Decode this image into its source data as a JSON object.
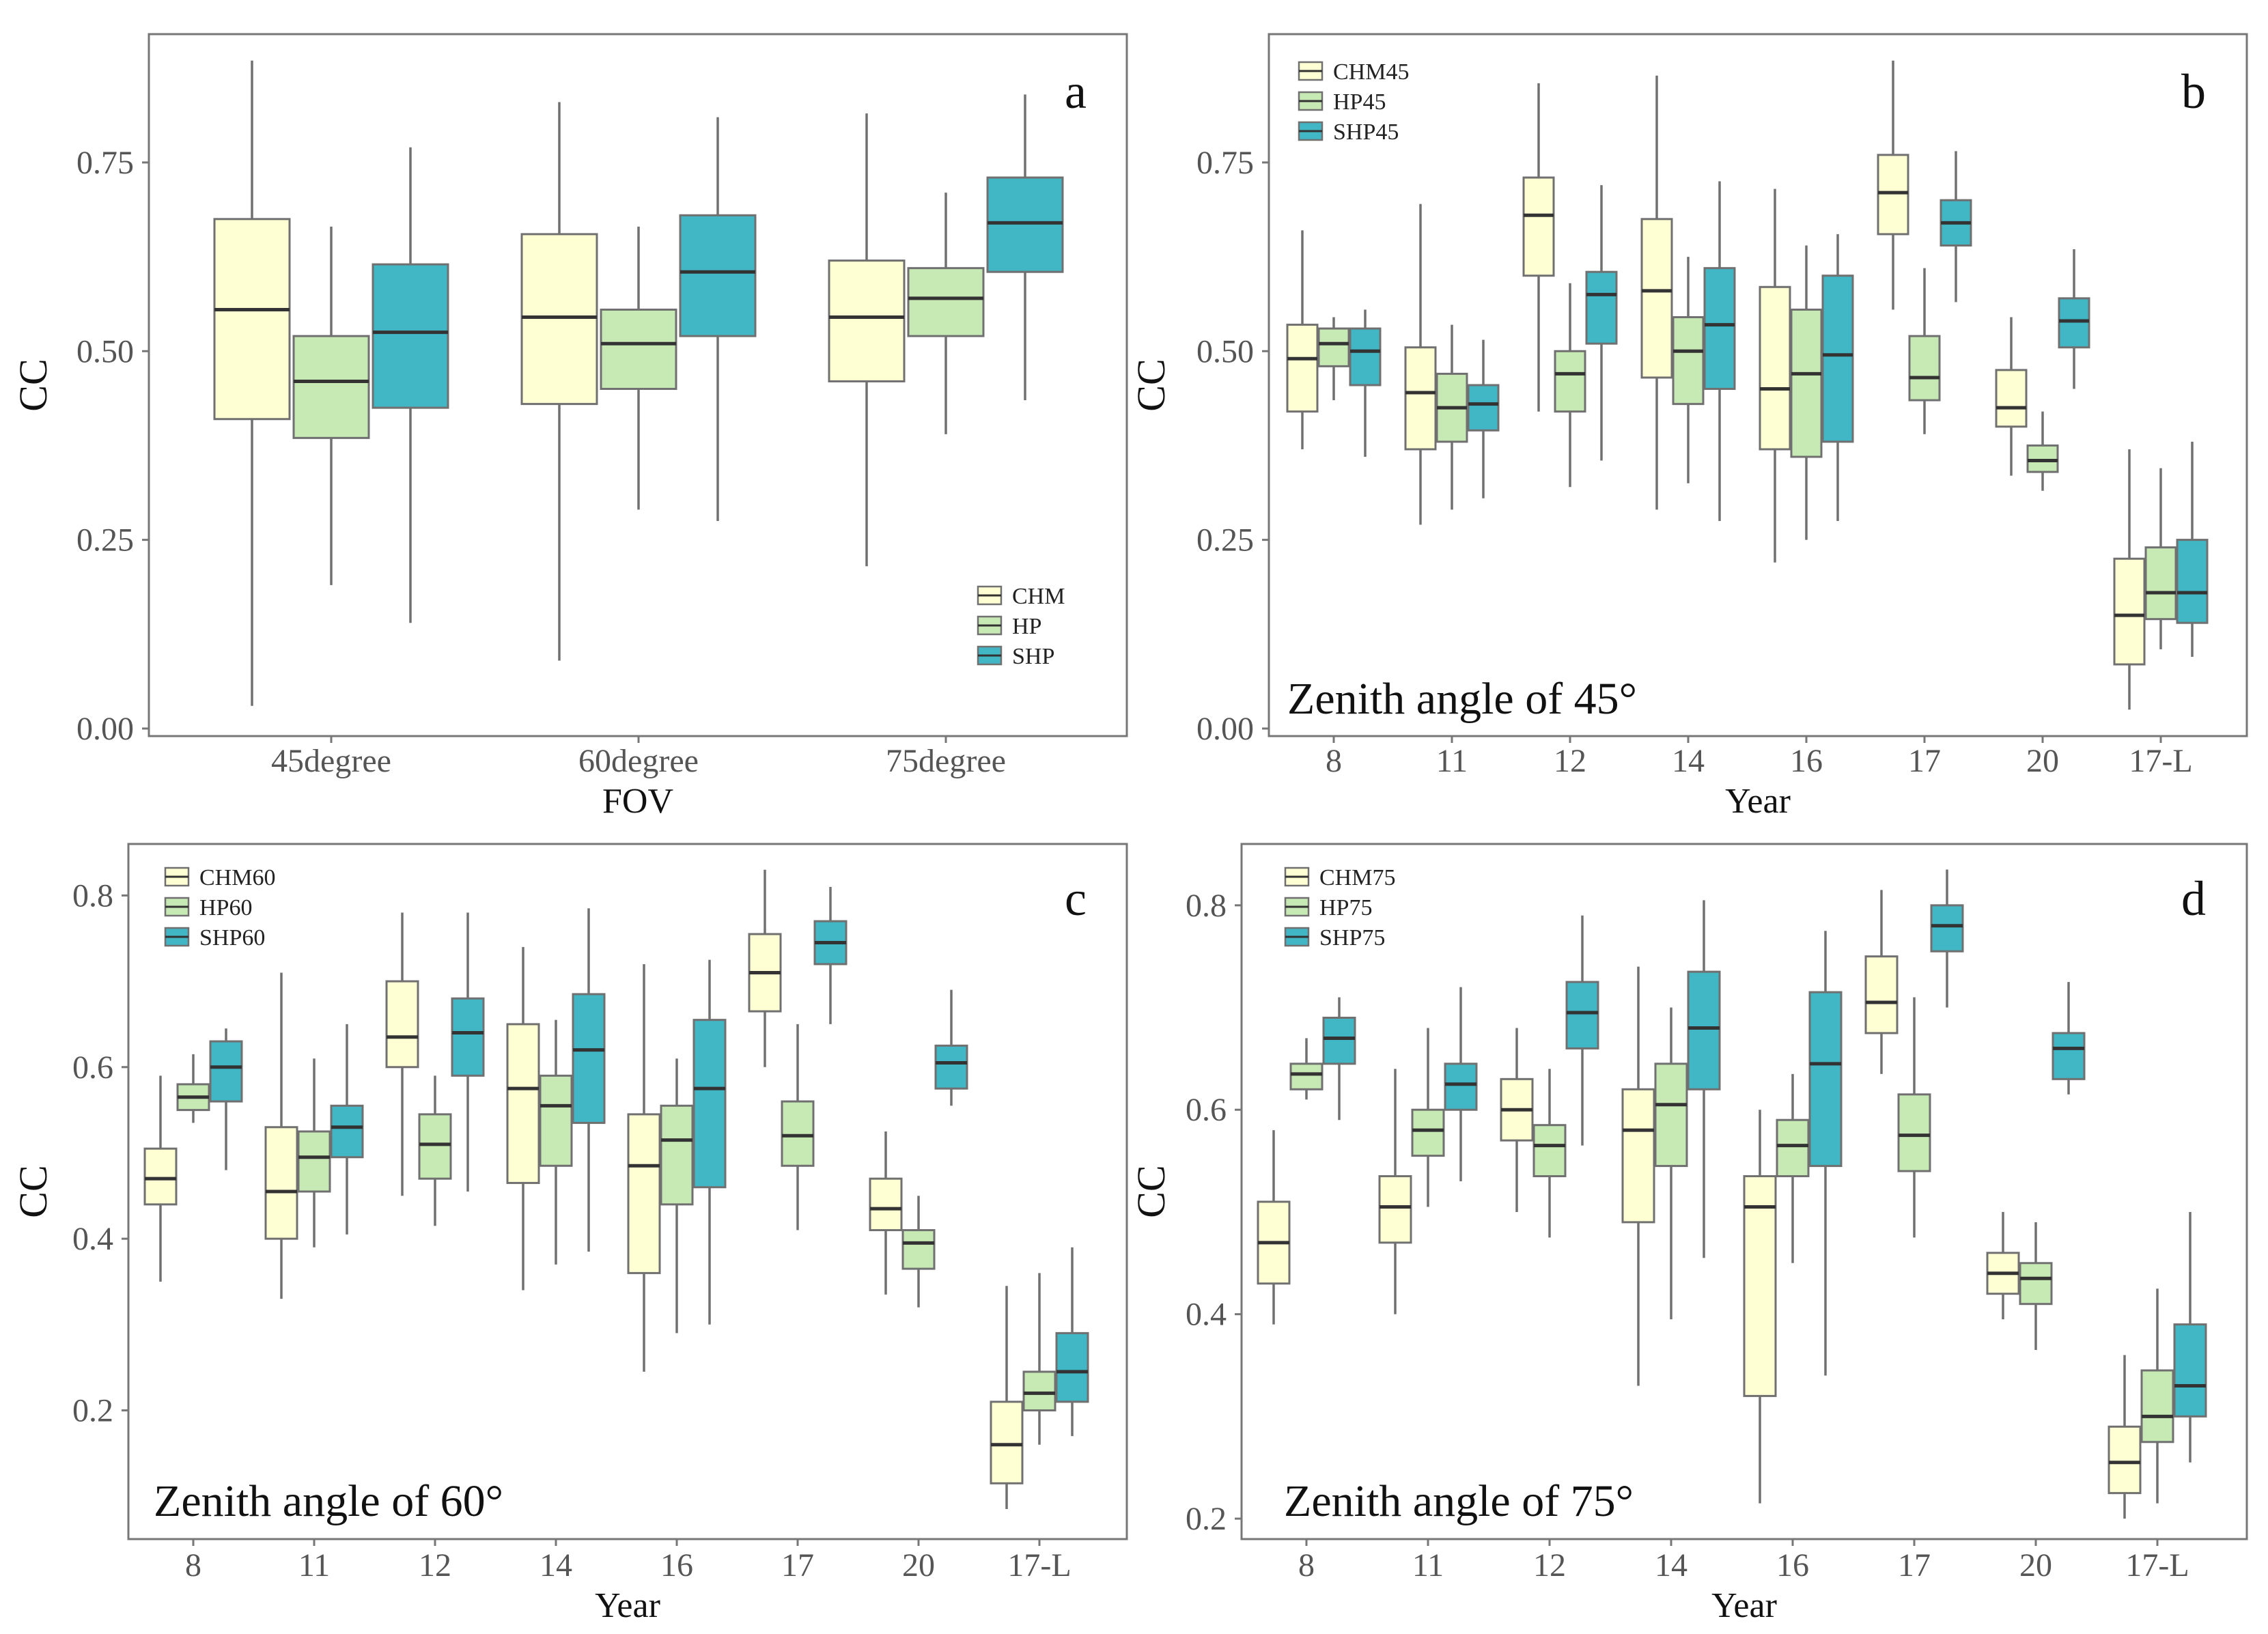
{
  "colors": {
    "CHM": "#FFFFD4",
    "HP": "#C7E9B4",
    "SHP": "#41B6C4",
    "frame": "#777777",
    "whisker": "#707070",
    "median": "#333333"
  },
  "chart_data": [
    {
      "panel": "a",
      "type": "box",
      "xlabel": "FOV",
      "ylabel": "CC",
      "ylim": [
        -0.01,
        0.92
      ],
      "yticks": [
        0.0,
        0.25,
        0.5,
        0.75
      ],
      "ytick_labels": [
        "0.00",
        "0.25",
        "0.50",
        "0.75"
      ],
      "categories": [
        "45degree",
        "60degree",
        "75degree"
      ],
      "legend": {
        "position": "bottom-right",
        "entries": [
          "CHM",
          "HP",
          "SHP"
        ]
      },
      "series": [
        {
          "name": "CHM",
          "boxes": [
            {
              "min": 0.03,
              "q1": 0.41,
              "median": 0.555,
              "q3": 0.675,
              "max": 0.885
            },
            {
              "min": 0.09,
              "q1": 0.43,
              "median": 0.545,
              "q3": 0.655,
              "max": 0.83
            },
            {
              "min": 0.215,
              "q1": 0.46,
              "median": 0.545,
              "q3": 0.62,
              "max": 0.815
            }
          ]
        },
        {
          "name": "HP",
          "boxes": [
            {
              "min": 0.19,
              "q1": 0.385,
              "median": 0.46,
              "q3": 0.52,
              "max": 0.665
            },
            {
              "min": 0.29,
              "q1": 0.45,
              "median": 0.51,
              "q3": 0.555,
              "max": 0.665
            },
            {
              "min": 0.39,
              "q1": 0.52,
              "median": 0.57,
              "q3": 0.61,
              "max": 0.71
            }
          ]
        },
        {
          "name": "SHP",
          "boxes": [
            {
              "min": 0.14,
              "q1": 0.425,
              "median": 0.525,
              "q3": 0.615,
              "max": 0.77
            },
            {
              "min": 0.275,
              "q1": 0.52,
              "median": 0.605,
              "q3": 0.68,
              "max": 0.81
            },
            {
              "min": 0.435,
              "q1": 0.605,
              "median": 0.67,
              "q3": 0.73,
              "max": 0.84
            }
          ]
        }
      ]
    },
    {
      "panel": "b",
      "type": "box",
      "xlabel": "Year",
      "ylabel": "CC",
      "ylim": [
        -0.01,
        0.92
      ],
      "yticks": [
        0.0,
        0.25,
        0.5,
        0.75
      ],
      "ytick_labels": [
        "0.00",
        "0.25",
        "0.50",
        "0.75"
      ],
      "categories": [
        "8",
        "11",
        "12",
        "14",
        "16",
        "17",
        "20",
        "17-L"
      ],
      "annotation": "Zenith angle of 45°",
      "legend": {
        "position": "top-left",
        "entries": [
          "CHM45",
          "HP45",
          "SHP45"
        ]
      },
      "series": [
        {
          "name": "CHM45",
          "boxes": [
            {
              "min": 0.37,
              "q1": 0.42,
              "median": 0.49,
              "q3": 0.535,
              "max": 0.66
            },
            {
              "min": 0.27,
              "q1": 0.37,
              "median": 0.445,
              "q3": 0.505,
              "max": 0.695
            },
            {
              "min": 0.42,
              "q1": 0.6,
              "median": 0.68,
              "q3": 0.73,
              "max": 0.855
            },
            {
              "min": 0.29,
              "q1": 0.465,
              "median": 0.58,
              "q3": 0.675,
              "max": 0.865
            },
            {
              "min": 0.22,
              "q1": 0.37,
              "median": 0.45,
              "q3": 0.585,
              "max": 0.715
            },
            {
              "min": 0.555,
              "q1": 0.655,
              "median": 0.71,
              "q3": 0.76,
              "max": 0.885
            },
            {
              "min": 0.335,
              "q1": 0.4,
              "median": 0.425,
              "q3": 0.475,
              "max": 0.545
            },
            {
              "min": 0.025,
              "q1": 0.085,
              "median": 0.15,
              "q3": 0.225,
              "max": 0.37
            }
          ]
        },
        {
          "name": "HP45",
          "boxes": [
            {
              "min": 0.435,
              "q1": 0.48,
              "median": 0.51,
              "q3": 0.53,
              "max": 0.545
            },
            {
              "min": 0.29,
              "q1": 0.38,
              "median": 0.425,
              "q3": 0.47,
              "max": 0.535
            },
            {
              "min": 0.32,
              "q1": 0.42,
              "median": 0.47,
              "q3": 0.5,
              "max": 0.59
            },
            {
              "min": 0.325,
              "q1": 0.43,
              "median": 0.5,
              "q3": 0.545,
              "max": 0.625
            },
            {
              "min": 0.25,
              "q1": 0.36,
              "median": 0.47,
              "q3": 0.555,
              "max": 0.64
            },
            {
              "min": 0.39,
              "q1": 0.435,
              "median": 0.465,
              "q3": 0.52,
              "max": 0.61
            },
            {
              "min": 0.315,
              "q1": 0.34,
              "median": 0.355,
              "q3": 0.375,
              "max": 0.42
            },
            {
              "min": 0.105,
              "q1": 0.145,
              "median": 0.18,
              "q3": 0.24,
              "max": 0.345
            }
          ]
        },
        {
          "name": "SHP45",
          "boxes": [
            {
              "min": 0.36,
              "q1": 0.455,
              "median": 0.5,
              "q3": 0.53,
              "max": 0.555
            },
            {
              "min": 0.305,
              "q1": 0.395,
              "median": 0.43,
              "q3": 0.455,
              "max": 0.515
            },
            {
              "min": 0.355,
              "q1": 0.51,
              "median": 0.575,
              "q3": 0.605,
              "max": 0.72
            },
            {
              "min": 0.275,
              "q1": 0.45,
              "median": 0.535,
              "q3": 0.61,
              "max": 0.725
            },
            {
              "min": 0.275,
              "q1": 0.38,
              "median": 0.495,
              "q3": 0.6,
              "max": 0.655
            },
            {
              "min": 0.565,
              "q1": 0.64,
              "median": 0.67,
              "q3": 0.7,
              "max": 0.765
            },
            {
              "min": 0.45,
              "q1": 0.505,
              "median": 0.54,
              "q3": 0.57,
              "max": 0.635
            },
            {
              "min": 0.095,
              "q1": 0.14,
              "median": 0.18,
              "q3": 0.25,
              "max": 0.38
            }
          ]
        }
      ]
    },
    {
      "panel": "c",
      "type": "box",
      "xlabel": "Year",
      "ylabel": "CC",
      "ylim": [
        0.05,
        0.86
      ],
      "yticks": [
        0.2,
        0.4,
        0.6,
        0.8
      ],
      "ytick_labels": [
        "0.2",
        "0.4",
        "0.6",
        "0.8"
      ],
      "categories": [
        "8",
        "11",
        "12",
        "14",
        "16",
        "17",
        "20",
        "17-L"
      ],
      "annotation": "Zenith angle of 60°",
      "legend": {
        "position": "top-left",
        "entries": [
          "CHM60",
          "HP60",
          "SHP60"
        ]
      },
      "series": [
        {
          "name": "CHM60",
          "boxes": [
            {
              "min": 0.35,
              "q1": 0.44,
              "median": 0.47,
              "q3": 0.505,
              "max": 0.59
            },
            {
              "min": 0.33,
              "q1": 0.4,
              "median": 0.455,
              "q3": 0.53,
              "max": 0.71
            },
            {
              "min": 0.45,
              "q1": 0.6,
              "median": 0.635,
              "q3": 0.7,
              "max": 0.78
            },
            {
              "min": 0.34,
              "q1": 0.465,
              "median": 0.575,
              "q3": 0.65,
              "max": 0.74
            },
            {
              "min": 0.245,
              "q1": 0.36,
              "median": 0.485,
              "q3": 0.545,
              "max": 0.72
            },
            {
              "min": 0.6,
              "q1": 0.665,
              "median": 0.71,
              "q3": 0.755,
              "max": 0.83
            },
            {
              "min": 0.335,
              "q1": 0.41,
              "median": 0.435,
              "q3": 0.47,
              "max": 0.525
            },
            {
              "min": 0.085,
              "q1": 0.115,
              "median": 0.16,
              "q3": 0.21,
              "max": 0.345
            }
          ]
        },
        {
          "name": "HP60",
          "boxes": [
            {
              "min": 0.535,
              "q1": 0.55,
              "median": 0.565,
              "q3": 0.58,
              "max": 0.615
            },
            {
              "min": 0.39,
              "q1": 0.455,
              "median": 0.495,
              "q3": 0.525,
              "max": 0.61
            },
            {
              "min": 0.415,
              "q1": 0.47,
              "median": 0.51,
              "q3": 0.545,
              "max": 0.59
            },
            {
              "min": 0.37,
              "q1": 0.485,
              "median": 0.555,
              "q3": 0.59,
              "max": 0.655
            },
            {
              "min": 0.29,
              "q1": 0.44,
              "median": 0.515,
              "q3": 0.555,
              "max": 0.61
            },
            {
              "min": 0.41,
              "q1": 0.485,
              "median": 0.52,
              "q3": 0.56,
              "max": 0.65
            },
            {
              "min": 0.32,
              "q1": 0.365,
              "median": 0.395,
              "q3": 0.41,
              "max": 0.45
            },
            {
              "min": 0.16,
              "q1": 0.2,
              "median": 0.22,
              "q3": 0.245,
              "max": 0.36
            }
          ]
        },
        {
          "name": "SHP60",
          "boxes": [
            {
              "min": 0.48,
              "q1": 0.56,
              "median": 0.6,
              "q3": 0.63,
              "max": 0.645
            },
            {
              "min": 0.405,
              "q1": 0.495,
              "median": 0.53,
              "q3": 0.555,
              "max": 0.65
            },
            {
              "min": 0.455,
              "q1": 0.59,
              "median": 0.64,
              "q3": 0.68,
              "max": 0.78
            },
            {
              "min": 0.385,
              "q1": 0.535,
              "median": 0.62,
              "q3": 0.685,
              "max": 0.785
            },
            {
              "min": 0.3,
              "q1": 0.46,
              "median": 0.575,
              "q3": 0.655,
              "max": 0.725
            },
            {
              "min": 0.65,
              "q1": 0.72,
              "median": 0.745,
              "q3": 0.77,
              "max": 0.81
            },
            {
              "min": 0.555,
              "q1": 0.575,
              "median": 0.605,
              "q3": 0.625,
              "max": 0.69
            },
            {
              "min": 0.17,
              "q1": 0.21,
              "median": 0.245,
              "q3": 0.29,
              "max": 0.39
            }
          ]
        }
      ]
    },
    {
      "panel": "d",
      "type": "box",
      "xlabel": "Year",
      "ylabel": "CC",
      "ylim": [
        0.18,
        0.86
      ],
      "yticks": [
        0.2,
        0.4,
        0.6,
        0.8
      ],
      "ytick_labels": [
        "0.2",
        "0.4",
        "0.6",
        "0.8"
      ],
      "categories": [
        "8",
        "11",
        "12",
        "14",
        "16",
        "17",
        "20",
        "17-L"
      ],
      "annotation": "Zenith angle of 75°",
      "legend": {
        "position": "top-left",
        "entries": [
          "CHM75",
          "HP75",
          "SHP75"
        ]
      },
      "series": [
        {
          "name": "CHM75",
          "boxes": [
            {
              "min": 0.39,
              "q1": 0.43,
              "median": 0.47,
              "q3": 0.51,
              "max": 0.58
            },
            {
              "min": 0.4,
              "q1": 0.47,
              "median": 0.505,
              "q3": 0.535,
              "max": 0.64
            },
            {
              "min": 0.5,
              "q1": 0.57,
              "median": 0.6,
              "q3": 0.63,
              "max": 0.68
            },
            {
              "min": 0.33,
              "q1": 0.49,
              "median": 0.58,
              "q3": 0.62,
              "max": 0.74
            },
            {
              "min": 0.215,
              "q1": 0.32,
              "median": 0.505,
              "q3": 0.535,
              "max": 0.6
            },
            {
              "min": 0.635,
              "q1": 0.675,
              "median": 0.705,
              "q3": 0.75,
              "max": 0.815
            },
            {
              "min": 0.395,
              "q1": 0.42,
              "median": 0.44,
              "q3": 0.46,
              "max": 0.5
            },
            {
              "min": 0.2,
              "q1": 0.225,
              "median": 0.255,
              "q3": 0.29,
              "max": 0.36
            }
          ]
        },
        {
          "name": "HP75",
          "boxes": [
            {
              "min": 0.61,
              "q1": 0.62,
              "median": 0.635,
              "q3": 0.645,
              "max": 0.67
            },
            {
              "min": 0.505,
              "q1": 0.555,
              "median": 0.58,
              "q3": 0.6,
              "max": 0.68
            },
            {
              "min": 0.475,
              "q1": 0.535,
              "median": 0.565,
              "q3": 0.585,
              "max": 0.64
            },
            {
              "min": 0.395,
              "q1": 0.545,
              "median": 0.605,
              "q3": 0.645,
              "max": 0.7
            },
            {
              "min": 0.45,
              "q1": 0.535,
              "median": 0.565,
              "q3": 0.59,
              "max": 0.635
            },
            {
              "min": 0.475,
              "q1": 0.54,
              "median": 0.575,
              "q3": 0.615,
              "max": 0.71
            },
            {
              "min": 0.365,
              "q1": 0.41,
              "median": 0.435,
              "q3": 0.45,
              "max": 0.49
            },
            {
              "min": 0.215,
              "q1": 0.275,
              "median": 0.3,
              "q3": 0.345,
              "max": 0.425
            }
          ]
        },
        {
          "name": "SHP75",
          "boxes": [
            {
              "min": 0.59,
              "q1": 0.645,
              "median": 0.67,
              "q3": 0.69,
              "max": 0.71
            },
            {
              "min": 0.53,
              "q1": 0.6,
              "median": 0.625,
              "q3": 0.645,
              "max": 0.72
            },
            {
              "min": 0.565,
              "q1": 0.66,
              "median": 0.695,
              "q3": 0.725,
              "max": 0.79
            },
            {
              "min": 0.455,
              "q1": 0.62,
              "median": 0.68,
              "q3": 0.735,
              "max": 0.805
            },
            {
              "min": 0.34,
              "q1": 0.545,
              "median": 0.645,
              "q3": 0.715,
              "max": 0.775
            },
            {
              "min": 0.7,
              "q1": 0.755,
              "median": 0.78,
              "q3": 0.8,
              "max": 0.835
            },
            {
              "min": 0.615,
              "q1": 0.63,
              "median": 0.66,
              "q3": 0.675,
              "max": 0.725
            },
            {
              "min": 0.255,
              "q1": 0.3,
              "median": 0.33,
              "q3": 0.39,
              "max": 0.5
            }
          ]
        }
      ]
    }
  ]
}
